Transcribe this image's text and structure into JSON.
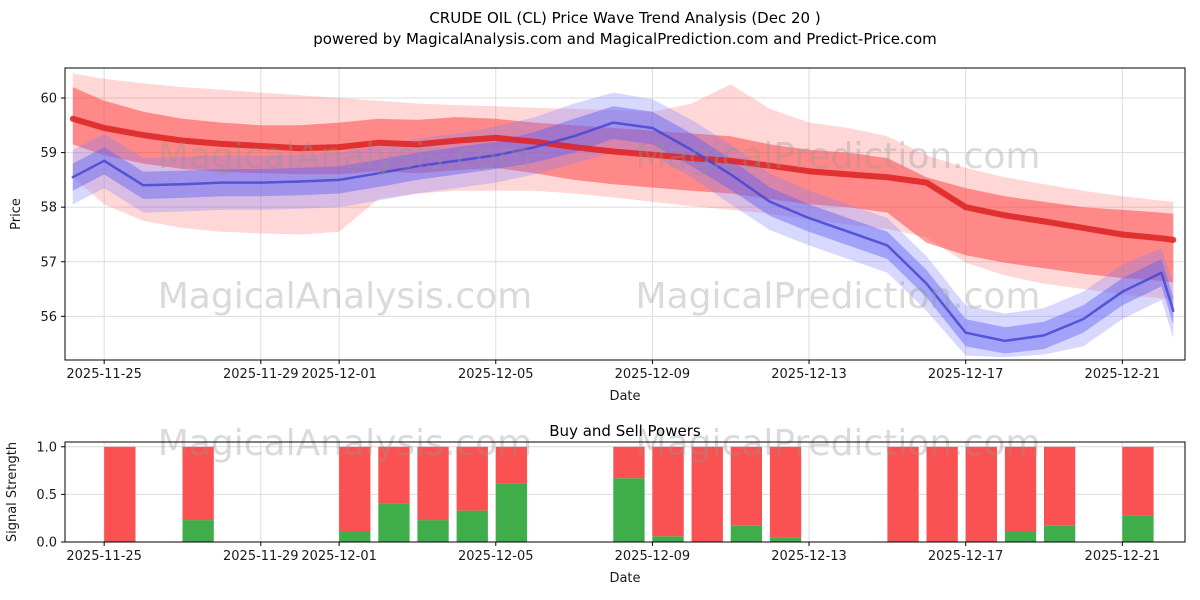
{
  "header": {
    "title": "CRUDE OIL (CL) Price Wave Trend Analysis (Dec 20 )",
    "subtitle": "powered by MagicalAnalysis.com and MagicalPrediction.com and Predict-Price.com"
  },
  "watermarks": {
    "analysis": "MagicalAnalysis.com",
    "prediction": "MagicalPrediction.com"
  },
  "chart_data": [
    {
      "id": "price-wave",
      "type": "area",
      "title": "",
      "xlabel": "Date",
      "ylabel": "Price",
      "xlim": [
        -1.0,
        27.6
      ],
      "ylim": [
        55.2,
        60.55
      ],
      "grid": true,
      "x_ticks": {
        "days": [
          0,
          4,
          6,
          10,
          14,
          18,
          22,
          26
        ],
        "labels": [
          "2025-11-25",
          "2025-11-29",
          "2025-12-01",
          "2025-12-05",
          "2025-12-09",
          "2025-12-13",
          "2025-12-17",
          "2025-12-21"
        ]
      },
      "y_tick_values": [
        56,
        57,
        58,
        59,
        60
      ],
      "y_tick_labels": [
        "56",
        "57",
        "58",
        "59",
        "60"
      ],
      "x": [
        -0.8,
        0,
        1,
        2,
        3,
        4,
        5,
        6,
        7,
        8,
        9,
        10,
        11,
        12,
        13,
        14,
        15,
        16,
        17,
        18,
        19,
        20,
        21,
        22,
        23,
        24,
        25,
        26,
        27,
        27.3
      ],
      "bands": [
        {
          "name": "red-wave-outer-band",
          "color": "#ff4a4a",
          "opacity": 0.22,
          "upper": [
            60.45,
            60.35,
            60.27,
            60.2,
            60.15,
            60.1,
            60.05,
            60.0,
            59.95,
            59.9,
            59.87,
            59.85,
            59.82,
            59.8,
            59.78,
            59.75,
            59.9,
            60.25,
            59.8,
            59.55,
            59.45,
            59.3,
            58.95,
            58.72,
            58.55,
            58.42,
            58.3,
            58.2,
            58.12,
            58.1
          ],
          "lower": [
            58.55,
            58.05,
            57.75,
            57.62,
            57.55,
            57.52,
            57.5,
            57.55,
            58.15,
            58.25,
            58.3,
            58.3,
            58.3,
            58.25,
            58.18,
            58.1,
            58.02,
            57.95,
            57.88,
            57.78,
            57.68,
            57.6,
            57.45,
            56.98,
            56.75,
            56.6,
            56.5,
            56.4,
            56.33,
            56.3
          ]
        },
        {
          "name": "red-wave-inner-band",
          "color": "#ff3b3b",
          "opacity": 0.5,
          "upper": [
            60.2,
            59.95,
            59.75,
            59.62,
            59.55,
            59.5,
            59.5,
            59.55,
            59.62,
            59.6,
            59.65,
            59.62,
            59.55,
            59.5,
            59.45,
            59.4,
            59.35,
            59.3,
            59.15,
            59.05,
            59.0,
            58.9,
            58.55,
            58.35,
            58.2,
            58.1,
            58.0,
            57.95,
            57.9,
            57.88
          ],
          "lower": [
            59.15,
            58.95,
            58.8,
            58.7,
            58.65,
            58.62,
            58.6,
            58.6,
            58.66,
            58.62,
            58.68,
            58.72,
            58.62,
            58.5,
            58.42,
            58.36,
            58.3,
            58.25,
            58.15,
            58.05,
            58.0,
            57.9,
            57.35,
            57.12,
            56.98,
            56.88,
            56.78,
            56.7,
            56.65,
            56.62
          ]
        },
        {
          "name": "blue-wave-outer-band",
          "color": "#7d7dff",
          "opacity": 0.3,
          "upper": [
            59.05,
            59.35,
            58.9,
            58.92,
            58.95,
            58.95,
            58.97,
            59.0,
            59.12,
            59.25,
            59.35,
            59.48,
            59.65,
            59.9,
            60.1,
            59.98,
            59.6,
            59.15,
            58.62,
            58.3,
            58.05,
            57.8,
            57.1,
            56.2,
            56.05,
            56.15,
            56.45,
            56.95,
            57.25,
            56.6
          ],
          "lower": [
            58.05,
            58.35,
            57.9,
            57.92,
            57.95,
            57.95,
            57.97,
            58.0,
            58.12,
            58.25,
            58.35,
            58.45,
            58.6,
            58.8,
            59.0,
            58.95,
            58.55,
            58.05,
            57.58,
            57.3,
            57.05,
            56.8,
            56.1,
            55.28,
            55.25,
            55.3,
            55.45,
            55.95,
            56.3,
            55.6
          ]
        },
        {
          "name": "blue-wave-inner-band",
          "color": "#6262f2",
          "opacity": 0.45,
          "upper": [
            58.8,
            59.1,
            58.65,
            58.67,
            58.7,
            58.7,
            58.72,
            58.75,
            58.87,
            59.0,
            59.1,
            59.2,
            59.38,
            59.62,
            59.85,
            59.75,
            59.35,
            58.88,
            58.36,
            58.05,
            57.8,
            57.55,
            56.85,
            55.95,
            55.8,
            55.9,
            56.2,
            56.7,
            57.05,
            56.35
          ],
          "lower": [
            58.3,
            58.6,
            58.15,
            58.17,
            58.2,
            58.2,
            58.22,
            58.25,
            58.37,
            58.5,
            58.6,
            58.7,
            58.82,
            59.0,
            59.25,
            59.15,
            58.75,
            58.32,
            57.84,
            57.55,
            57.3,
            57.05,
            56.35,
            55.45,
            55.32,
            55.4,
            55.7,
            56.2,
            56.55,
            55.85
          ]
        }
      ],
      "lines": [
        {
          "name": "red-wave-center-line",
          "color": "#dd2323",
          "opacity": 0.88,
          "width": 6,
          "values": [
            59.62,
            59.45,
            59.32,
            59.22,
            59.16,
            59.12,
            59.08,
            59.1,
            59.18,
            59.15,
            59.22,
            59.27,
            59.2,
            59.1,
            59.02,
            58.96,
            58.9,
            58.85,
            58.76,
            58.66,
            58.6,
            58.55,
            58.45,
            58.0,
            57.85,
            57.74,
            57.62,
            57.5,
            57.43,
            57.4
          ]
        },
        {
          "name": "blue-wave-center-line",
          "color": "#4747d1",
          "opacity": 0.85,
          "width": 2.5,
          "values": [
            58.55,
            58.85,
            58.4,
            58.42,
            58.45,
            58.45,
            58.47,
            58.5,
            58.62,
            58.75,
            58.85,
            58.95,
            59.1,
            59.3,
            59.55,
            59.45,
            59.05,
            58.6,
            58.1,
            57.8,
            57.55,
            57.3,
            56.6,
            55.7,
            55.55,
            55.65,
            55.95,
            56.45,
            56.8,
            56.1
          ]
        }
      ]
    },
    {
      "id": "buy-sell-powers",
      "type": "bar",
      "title": "Buy and Sell Powers",
      "xlabel": "Date",
      "ylabel": "Signal Strength",
      "xlim": [
        -1.0,
        27.6
      ],
      "ylim": [
        0,
        1.05
      ],
      "grid": true,
      "x_ticks": {
        "days": [
          0,
          4,
          6,
          10,
          14,
          18,
          22,
          26
        ],
        "labels": [
          "2025-11-25",
          "2025-11-29",
          "2025-12-01",
          "2025-12-05",
          "2025-12-09",
          "2025-12-13",
          "2025-12-17",
          "2025-12-21"
        ]
      },
      "y_tick_values": [
        0,
        0.5,
        1.0
      ],
      "y_tick_labels": [
        "0.0",
        "0.5",
        "1.0"
      ],
      "bar_width_days": 0.8,
      "colors": {
        "buy": "#3fae4a",
        "sell": "#fa5252"
      },
      "bars": [
        {
          "date": "2025-11-25",
          "day": 0,
          "buy": 0.0,
          "sell": 1.0
        },
        {
          "date": "2025-11-27",
          "day": 2,
          "buy": 0.23,
          "sell": 0.77
        },
        {
          "date": "2025-12-01",
          "day": 6,
          "buy": 0.11,
          "sell": 0.89
        },
        {
          "date": "2025-12-02",
          "day": 7,
          "buy": 0.4,
          "sell": 0.6
        },
        {
          "date": "2025-12-03",
          "day": 8,
          "buy": 0.23,
          "sell": 0.77
        },
        {
          "date": "2025-12-04",
          "day": 9,
          "buy": 0.33,
          "sell": 0.67
        },
        {
          "date": "2025-12-05",
          "day": 10,
          "buy": 0.61,
          "sell": 0.39
        },
        {
          "date": "2025-12-08",
          "day": 13,
          "buy": 0.67,
          "sell": 0.33
        },
        {
          "date": "2025-12-09",
          "day": 14,
          "buy": 0.06,
          "sell": 0.94
        },
        {
          "date": "2025-12-10",
          "day": 15,
          "buy": 0.0,
          "sell": 1.0
        },
        {
          "date": "2025-12-11",
          "day": 16,
          "buy": 0.17,
          "sell": 0.83
        },
        {
          "date": "2025-12-12",
          "day": 17,
          "buy": 0.05,
          "sell": 0.95
        },
        {
          "date": "2025-12-15",
          "day": 20,
          "buy": 0.0,
          "sell": 1.0
        },
        {
          "date": "2025-12-16",
          "day": 21,
          "buy": 0.0,
          "sell": 1.0
        },
        {
          "date": "2025-12-17",
          "day": 22,
          "buy": 0.0,
          "sell": 1.0
        },
        {
          "date": "2025-12-18",
          "day": 23,
          "buy": 0.11,
          "sell": 0.89
        },
        {
          "date": "2025-12-19",
          "day": 24,
          "buy": 0.17,
          "sell": 0.83
        },
        {
          "date": "2025-12-21",
          "day": 26,
          "buy": 0.28,
          "sell": 0.72
        }
      ]
    }
  ]
}
